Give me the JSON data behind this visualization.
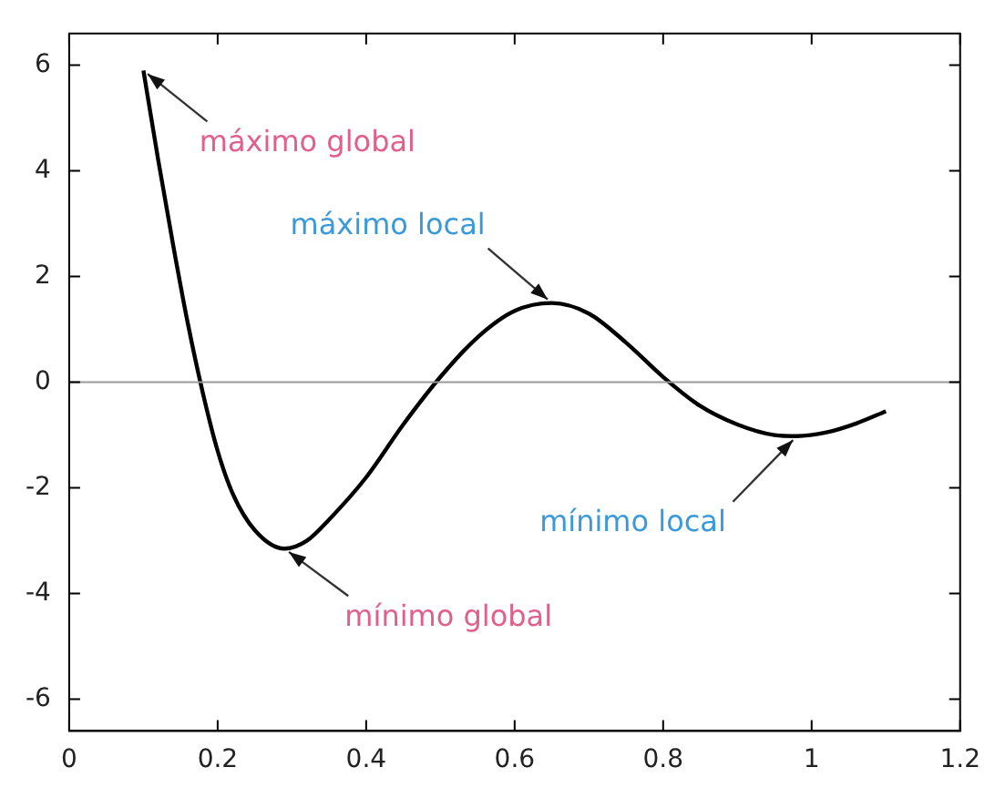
{
  "chart_data": {
    "type": "line",
    "series": [
      {
        "color": "#000000",
        "x": [
          0.1,
          0.12,
          0.14,
          0.16,
          0.18,
          0.2,
          0.22,
          0.25,
          0.29,
          0.32,
          0.35,
          0.4,
          0.45,
          0.5,
          0.55,
          0.6,
          0.65,
          0.7,
          0.75,
          0.8,
          0.85,
          0.9,
          0.95,
          0.98,
          1.02,
          1.06,
          1.1
        ],
        "values": [
          5.9,
          4.2,
          2.6,
          1.1,
          -0.2,
          -1.3,
          -2.1,
          -2.8,
          -3.15,
          -3.0,
          -2.6,
          -1.8,
          -0.8,
          0.1,
          0.85,
          1.35,
          1.5,
          1.3,
          0.75,
          0.1,
          -0.45,
          -0.8,
          -1.0,
          -1.02,
          -0.95,
          -0.78,
          -0.55
        ]
      }
    ],
    "xlim": [
      0,
      1.2
    ],
    "xticks": [
      0,
      0.2,
      0.4,
      0.6,
      0.8,
      1,
      1.2
    ],
    "ylim": [
      -6.6,
      6.6
    ],
    "yticks": [
      -6,
      -4,
      -2,
      0,
      2,
      4,
      6
    ],
    "ref_lines": [
      {
        "axis": "y",
        "value": 0,
        "color": "#999999"
      }
    ],
    "annotations": [
      {
        "text": "máximo global",
        "x": 0.1,
        "y": 5.9
      },
      {
        "text": "máximo local",
        "x": 0.65,
        "y": 1.5
      },
      {
        "text": "mínimo local",
        "x": 0.98,
        "y": -1.02
      },
      {
        "text": "mínimo global",
        "x": 0.29,
        "y": -3.15
      }
    ],
    "grid": false,
    "legend": false,
    "marker": "none",
    "line_style": "solid"
  }
}
